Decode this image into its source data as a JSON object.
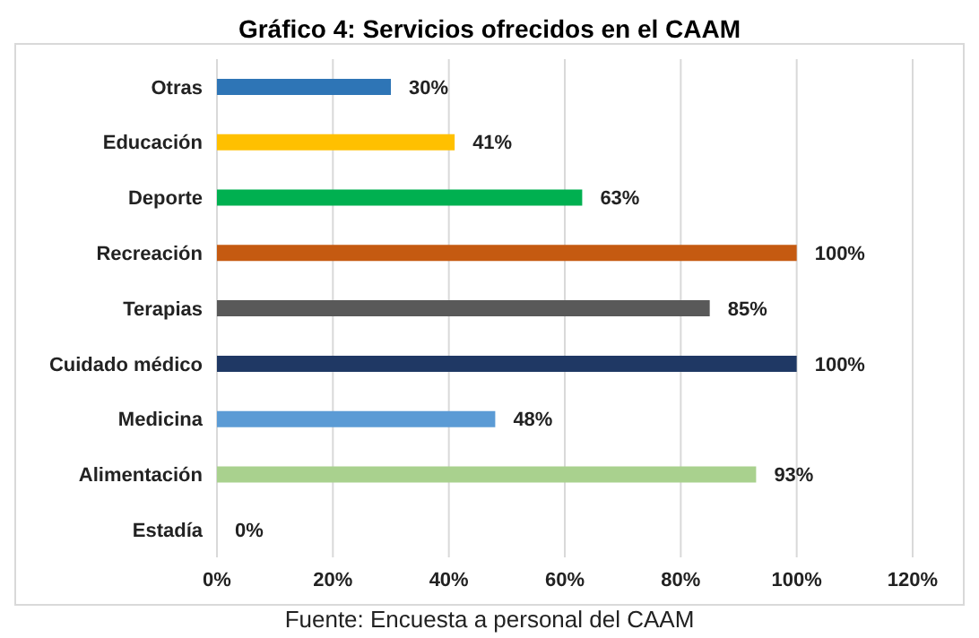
{
  "chart_data": {
    "type": "bar",
    "orientation": "horizontal",
    "title": "Gráfico 4: Servicios ofrecidos en el CAAM",
    "categories": [
      "Otras",
      "Educación",
      "Deporte",
      "Recreación",
      "Terapias",
      "Cuidado médico",
      "Medicina",
      "Alimentación",
      "Estadía"
    ],
    "values": [
      30,
      41,
      63,
      100,
      85,
      100,
      48,
      93,
      0
    ],
    "colors": [
      "#2e75b6",
      "#ffc000",
      "#00b050",
      "#c55a11",
      "#595959",
      "#1f3864",
      "#5b9bd5",
      "#a9d18e",
      "#a5a5a5"
    ],
    "value_labels": [
      "30%",
      "41%",
      "63%",
      "100%",
      "85%",
      "100%",
      "48%",
      "93%",
      "0%"
    ],
    "xlim": [
      0,
      120
    ],
    "xticks": [
      {
        "value": 0,
        "label": "0%"
      },
      {
        "value": 20,
        "label": "20%"
      },
      {
        "value": 40,
        "label": "40%"
      },
      {
        "value": 60,
        "label": "60%"
      },
      {
        "value": 80,
        "label": "80%"
      },
      {
        "value": 100,
        "label": "100%"
      },
      {
        "value": 120,
        "label": "120%"
      }
    ],
    "grid": "x",
    "annotations": [
      "Fuente: Encuesta a personal del CAAM"
    ]
  }
}
